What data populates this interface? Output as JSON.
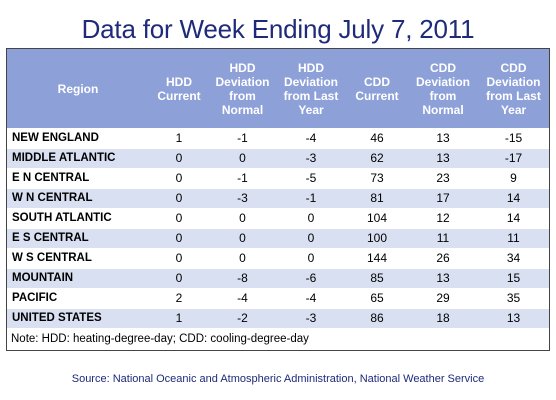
{
  "title": "Data for Week Ending July 7, 2011",
  "table": {
    "headers": [
      "Region",
      "HDD Current",
      "HDD Deviation from Normal",
      "HDD Deviation from Last Year",
      "CDD Current",
      "CDD Deviation from Normal",
      "CDD Deviation from Last Year"
    ],
    "rows": [
      [
        "NEW ENGLAND",
        "1",
        "-1",
        "-4",
        "46",
        "13",
        "-15"
      ],
      [
        "MIDDLE ATLANTIC",
        "0",
        "0",
        "-3",
        "62",
        "13",
        "-17"
      ],
      [
        "E N CENTRAL",
        "0",
        "-1",
        "-5",
        "73",
        "23",
        "9"
      ],
      [
        "W N CENTRAL",
        "0",
        "-3",
        "-1",
        "81",
        "17",
        "14"
      ],
      [
        "SOUTH ATLANTIC",
        "0",
        "0",
        "0",
        "104",
        "12",
        "14"
      ],
      [
        "E S CENTRAL",
        "0",
        "0",
        "0",
        "100",
        "11",
        "11"
      ],
      [
        "W S CENTRAL",
        "0",
        "0",
        "0",
        "144",
        "26",
        "34"
      ],
      [
        "MOUNTAIN",
        "0",
        "-8",
        "-6",
        "85",
        "13",
        "15"
      ],
      [
        "PACIFIC",
        "2",
        "-4",
        "-4",
        "65",
        "29",
        "35"
      ],
      [
        "UNITED STATES",
        "1",
        "-2",
        "-3",
        "86",
        "18",
        "13"
      ]
    ]
  },
  "note": "Note: HDD: heating-degree-day; CDD: cooling-degree-day",
  "source": "Source:  National Oceanic and Atmospheric Administration, National Weather Service",
  "colors": {
    "title": "#1f2a7a",
    "header_bg": "#8da0d8",
    "row_alt": "#d9e0f2"
  }
}
